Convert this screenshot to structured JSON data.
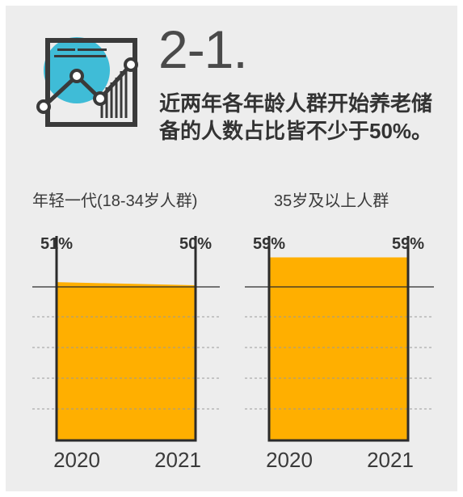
{
  "header": {
    "section_number": "2-1.",
    "headline_line1": "近两年各年龄人群开始养老储",
    "headline_line2": "备的人数占比皆不少于50%。"
  },
  "icon": {
    "name": "chart-icon",
    "accent_color": "#3fbcd7"
  },
  "colors": {
    "bar": "#ffaf00",
    "axis": "#2b2b2b",
    "grid": "#9a9a9a",
    "card": "#ededed"
  },
  "chart_data": [
    {
      "type": "area",
      "title": "年轻一代(18-34岁人群)",
      "x": [
        "2020",
        "2021"
      ],
      "series": [
        {
          "values": [
            51,
            50
          ]
        }
      ],
      "data_labels": [
        "51%",
        "50%"
      ],
      "ylim": [
        0,
        100
      ],
      "reference_line": 50,
      "grid": "dashed"
    },
    {
      "type": "area",
      "title": "35岁及以上人群",
      "x": [
        "2020",
        "2021"
      ],
      "series": [
        {
          "values": [
            59,
            59
          ]
        }
      ],
      "data_labels": [
        "59%",
        "59%"
      ],
      "ylim": [
        0,
        100
      ],
      "reference_line": 50,
      "grid": "dashed"
    }
  ]
}
